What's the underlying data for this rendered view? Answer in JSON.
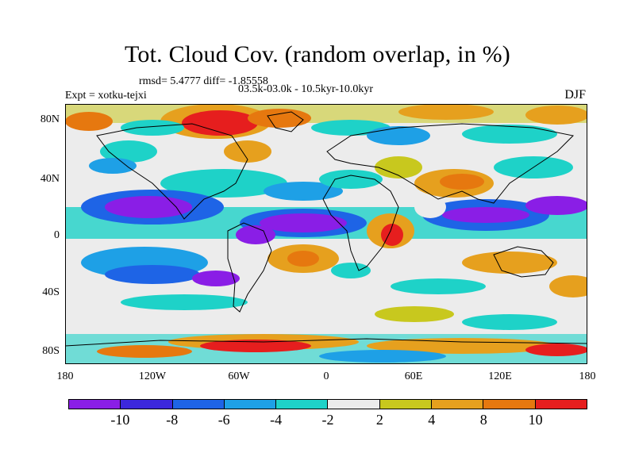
{
  "title": "Tot. Cloud Cov. (random overlap, in %)",
  "stats": "rmsd= 5.4777 diff= -1.85558",
  "period": "03.5k-03.0k - 10.5kyr-10.0kyr",
  "expt": "Expt = xotku-tejxi",
  "season": "DJF",
  "lat_labels": [
    "80N",
    "40N",
    "0",
    "40S",
    "80S"
  ],
  "lon_labels": [
    "180",
    "120W",
    "60W",
    "0",
    "60E",
    "120E",
    "180"
  ],
  "colorbar": {
    "colors": [
      "#8a1ee6",
      "#3c28dc",
      "#1e64e6",
      "#1ea0e6",
      "#1ed2c8",
      "#ececec",
      "#c8c81e",
      "#e6a01e",
      "#e6780f",
      "#e61e1e"
    ],
    "labels": [
      "-10",
      "-8",
      "-6",
      "-4",
      "-2",
      "2",
      "4",
      "8",
      "10"
    ]
  }
}
